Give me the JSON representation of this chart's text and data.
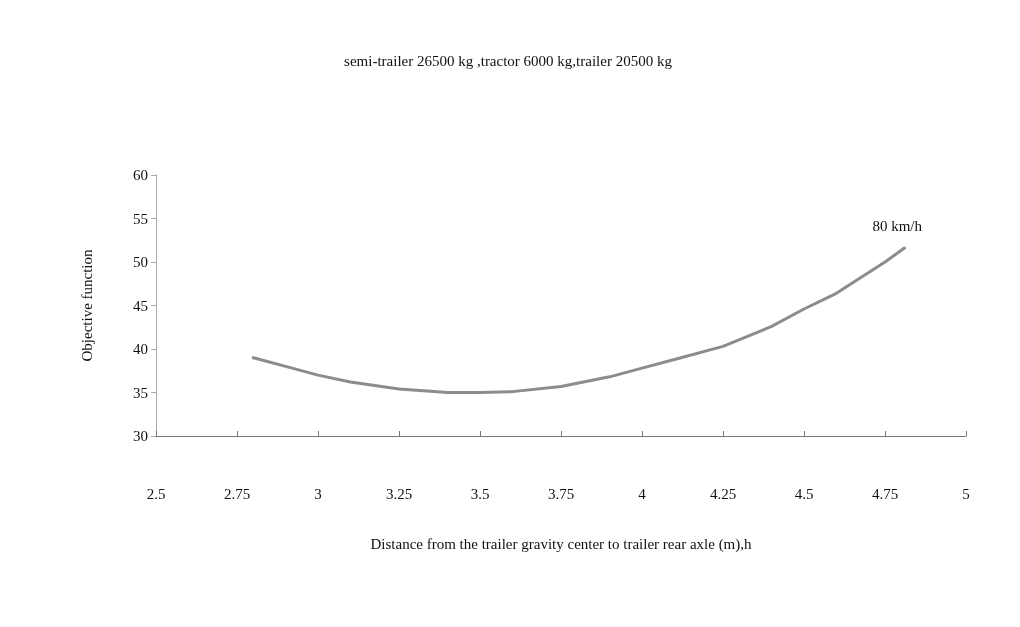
{
  "chart_data": {
    "type": "line",
    "title": "semi-trailer 26500 kg ,tractor 6000 kg,trailer 20500 kg",
    "xlabel": "Distance from the trailer gravity center to trailer rear axle (m),h",
    "ylabel": "Objective function",
    "series": [
      {
        "name": "80 km/h",
        "color": "#8c8c8c",
        "x": [
          2.8,
          2.9,
          3.0,
          3.1,
          3.25,
          3.4,
          3.5,
          3.6,
          3.75,
          3.9,
          4.0,
          4.1,
          4.25,
          4.4,
          4.5,
          4.6,
          4.75,
          4.81
        ],
        "values": [
          39,
          38,
          37,
          36.2,
          35.4,
          35.0,
          35,
          35.1,
          35.7,
          36.8,
          37.8,
          38.8,
          40.3,
          42.6,
          44.6,
          46.4,
          50,
          51.6
        ]
      }
    ],
    "xlim": [
      2.5,
      5
    ],
    "xticks": [
      2.5,
      2.75,
      3,
      3.25,
      3.5,
      3.75,
      4,
      4.25,
      4.5,
      4.75,
      5
    ],
    "ylim": [
      30,
      60
    ],
    "yticks": [
      30,
      35,
      40,
      45,
      50,
      55,
      60
    ],
    "grid": false,
    "legend": false,
    "marker": "none",
    "line_style": "solid"
  }
}
